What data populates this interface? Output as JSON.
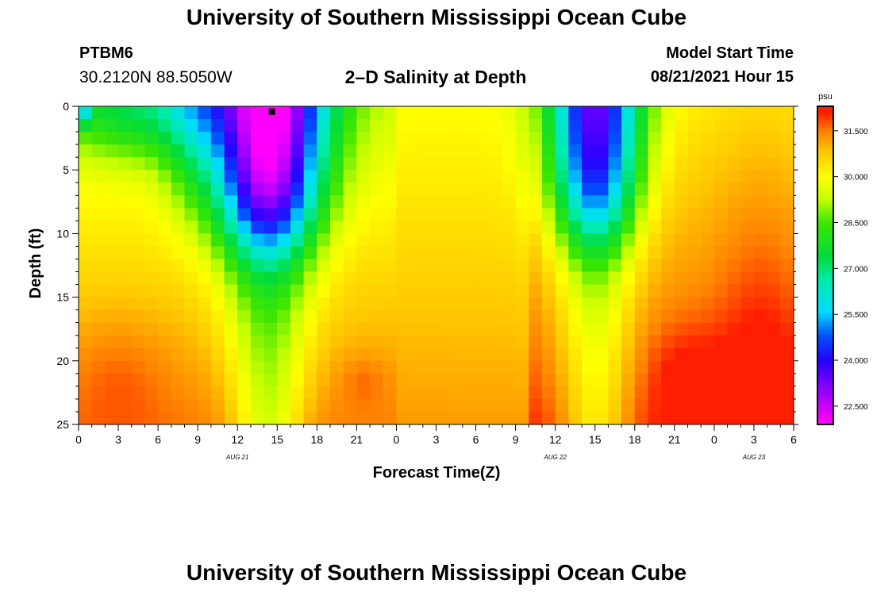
{
  "header": {
    "title": "University of Southern Mississippi Ocean Cube",
    "station": "PTBM6",
    "coordinates": "30.2120N  88.5050W",
    "plot_title": "2–D Salinity at Depth",
    "model_start_label": "Model Start Time",
    "model_start_value": "08/21/2021 Hour 15"
  },
  "footer": {
    "title": "University of Southern Mississippi Ocean Cube"
  },
  "chart_data": {
    "type": "heatmap",
    "title": "2–D Salinity at Depth",
    "xlabel": "Forecast Time(Z)",
    "ylabel": "Depth (ft)",
    "x_range_hours": [
      0,
      54
    ],
    "y_range_ft": [
      0,
      25
    ],
    "x_ticks": [
      {
        "hour": 0,
        "label": "0"
      },
      {
        "hour": 3,
        "label": "3"
      },
      {
        "hour": 6,
        "label": "6"
      },
      {
        "hour": 9,
        "label": "9"
      },
      {
        "hour": 12,
        "label": "12"
      },
      {
        "hour": 15,
        "label": "15"
      },
      {
        "hour": 18,
        "label": "18"
      },
      {
        "hour": 21,
        "label": "21"
      },
      {
        "hour": 24,
        "label": "0"
      },
      {
        "hour": 27,
        "label": "3"
      },
      {
        "hour": 30,
        "label": "6"
      },
      {
        "hour": 33,
        "label": "9"
      },
      {
        "hour": 36,
        "label": "12"
      },
      {
        "hour": 39,
        "label": "15"
      },
      {
        "hour": 42,
        "label": "18"
      },
      {
        "hour": 45,
        "label": "21"
      },
      {
        "hour": 48,
        "label": "0"
      },
      {
        "hour": 51,
        "label": "3"
      },
      {
        "hour": 54,
        "label": "6"
      }
    ],
    "date_labels": [
      {
        "hour": 12,
        "label": "AUG 21"
      },
      {
        "hour": 36,
        "label": "AUG 22"
      },
      {
        "hour": 51,
        "label": "AUG 23"
      }
    ],
    "y_ticks": [
      {
        "depth": 0,
        "label": "0"
      },
      {
        "depth": 5,
        "label": "5"
      },
      {
        "depth": 10,
        "label": "10"
      },
      {
        "depth": 15,
        "label": "15"
      },
      {
        "depth": 20,
        "label": "20"
      },
      {
        "depth": 25,
        "label": "25"
      }
    ],
    "marker": {
      "hour": 14.6,
      "depth": 0.3
    },
    "colorbar": {
      "unit": "psu",
      "range": [
        21.9,
        32.3
      ],
      "ticks": [
        "22.500",
        "24.000",
        "25.500",
        "27.000",
        "28.500",
        "30.000",
        "31.500"
      ],
      "tick_values": [
        22.5,
        24.0,
        25.5,
        27.0,
        28.5,
        30.0,
        31.5
      ]
    },
    "field_summary": {
      "description": "Salinity (psu) vs forecast hour and depth; fresh surface lenses near hours 14 and 39",
      "fresh_lens_1": {
        "center_hour": 14.3,
        "surface_min_psu": 22.1
      },
      "fresh_lens_2": {
        "center_hour": 39.0,
        "surface_min_psu": 23.3
      },
      "deep_max_psu": 32.0
    }
  }
}
